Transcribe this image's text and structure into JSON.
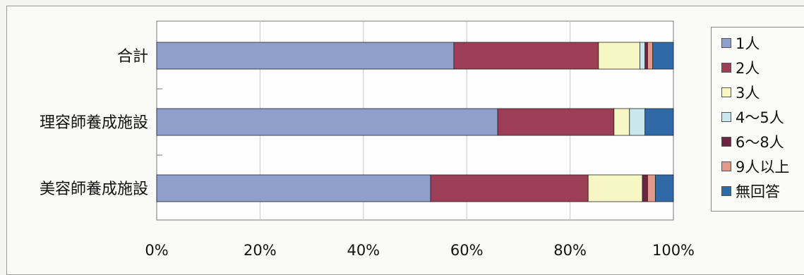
{
  "chart_data": {
    "type": "bar",
    "orientation": "horizontal",
    "stacked": "percent",
    "categories": [
      "合計",
      "理容師養成施設",
      "美容師養成施設"
    ],
    "series": [
      {
        "name": "1人",
        "color": "#8f9fcb",
        "values": [
          57.5,
          66.0,
          53.0
        ]
      },
      {
        "name": "2人",
        "color": "#9c3e55",
        "values": [
          28.0,
          22.5,
          30.5
        ]
      },
      {
        "name": "3人",
        "color": "#f7f7c6",
        "values": [
          8.0,
          3.0,
          10.5
        ]
      },
      {
        "name": "4～5人",
        "color": "#c9e7ec",
        "values": [
          1.0,
          3.0,
          0.0
        ]
      },
      {
        "name": "6～8人",
        "color": "#6a2540",
        "values": [
          0.5,
          0.0,
          1.0
        ]
      },
      {
        "name": "9人以上",
        "color": "#e39a8c",
        "values": [
          1.0,
          0.0,
          1.5
        ]
      },
      {
        "name": "無回答",
        "color": "#2f6aa6",
        "values": [
          4.0,
          5.5,
          3.5
        ]
      }
    ],
    "x_ticks": [
      "0%",
      "20%",
      "40%",
      "60%",
      "80%",
      "100%"
    ],
    "xlim": [
      0,
      100
    ],
    "grid": true,
    "legend": "right"
  }
}
